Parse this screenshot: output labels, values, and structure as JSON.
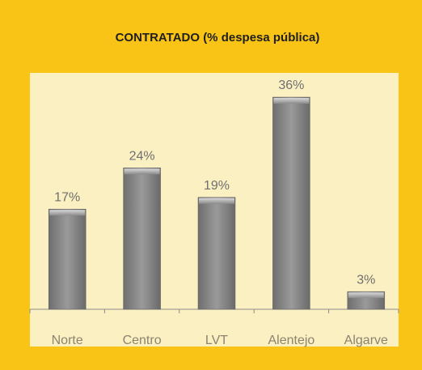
{
  "chart_data": {
    "type": "bar",
    "title": "CONTRATADO  (% despesa pública)",
    "categories": [
      "Norte",
      "Centro",
      "LVT",
      "Alentejo",
      "Algarve"
    ],
    "values": [
      17,
      24,
      19,
      36,
      3
    ],
    "value_labels": [
      "17%",
      "24%",
      "19%",
      "36%",
      "3%"
    ],
    "color": "#8c8c8c"
  }
}
